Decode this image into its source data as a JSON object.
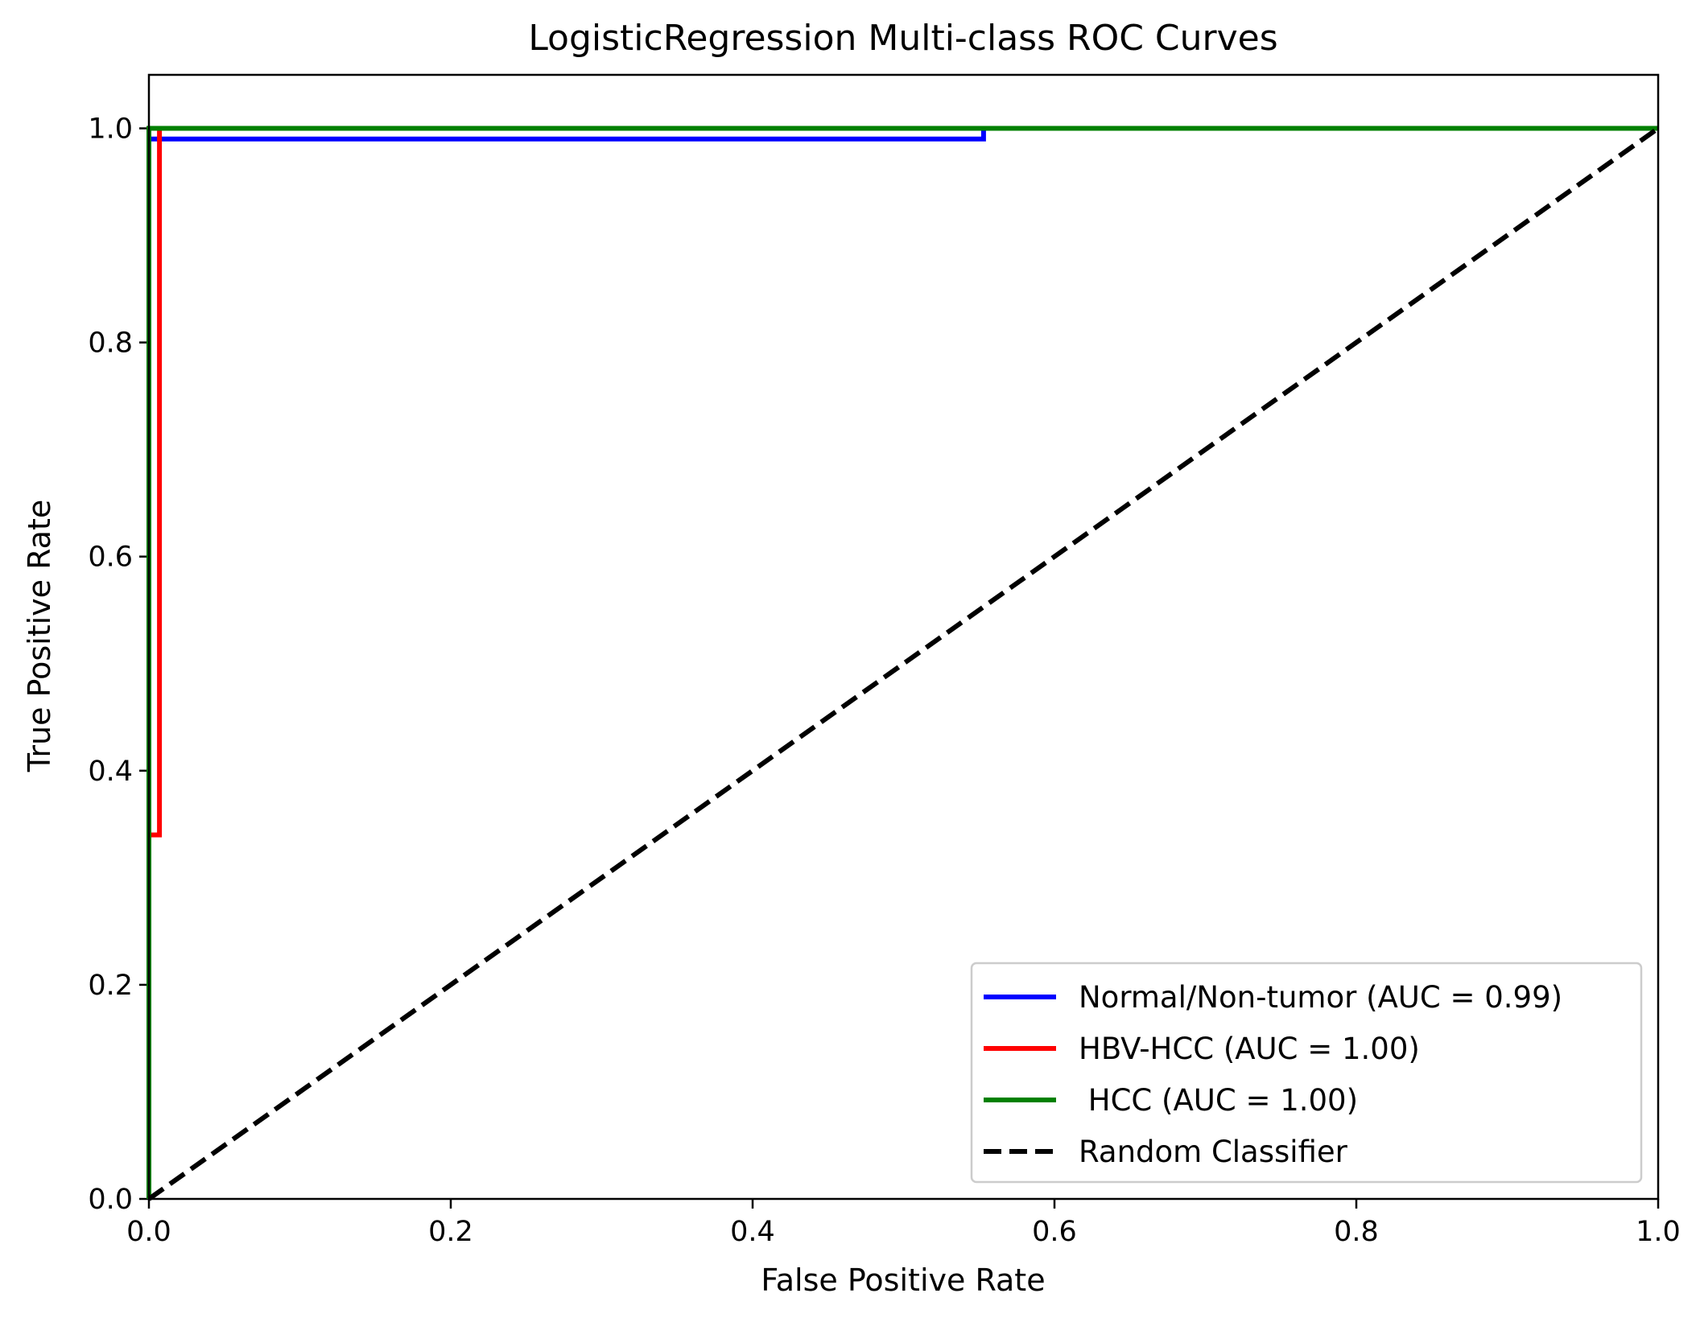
{
  "chart_data": {
    "type": "line",
    "title": "LogisticRegression Multi-class ROC Curves",
    "xlabel": "False Positive Rate",
    "ylabel": "True Positive Rate",
    "xlim": [
      0,
      1
    ],
    "ylim": [
      0,
      1.05
    ],
    "xticks": [
      0.0,
      0.2,
      0.4,
      0.6,
      0.8,
      1.0
    ],
    "yticks": [
      0.0,
      0.2,
      0.4,
      0.6,
      0.8,
      1.0
    ],
    "xtick_labels": [
      "0.0",
      "0.2",
      "0.4",
      "0.6",
      "0.8",
      "1.0"
    ],
    "ytick_labels": [
      "0.0",
      "0.2",
      "0.4",
      "0.6",
      "0.8",
      "1.0"
    ],
    "grid": false,
    "legend_position": "lower-right",
    "series": [
      {
        "name": "Normal/Non-tumor (AUC = 0.99)",
        "color": "#0000ff",
        "dash": "solid",
        "x": [
          0.0,
          0.0,
          0.553,
          0.553,
          1.0
        ],
        "y": [
          0.0,
          0.99,
          0.99,
          1.0,
          1.0
        ]
      },
      {
        "name": "HBV-HCC (AUC = 1.00)",
        "color": "#ff0000",
        "dash": "solid",
        "x": [
          0.0,
          0.0,
          0.007,
          0.007,
          1.0
        ],
        "y": [
          0.0,
          0.34,
          0.34,
          1.0,
          1.0
        ]
      },
      {
        "name": " HCC (AUC = 1.00)",
        "color": "#008000",
        "dash": "solid",
        "x": [
          0.0,
          0.0,
          1.0
        ],
        "y": [
          0.0,
          1.0,
          1.0
        ]
      },
      {
        "name": "Random Classifier",
        "color": "#000000",
        "dash": "dashed",
        "x": [
          0.0,
          1.0
        ],
        "y": [
          0.0,
          1.0
        ]
      }
    ]
  }
}
